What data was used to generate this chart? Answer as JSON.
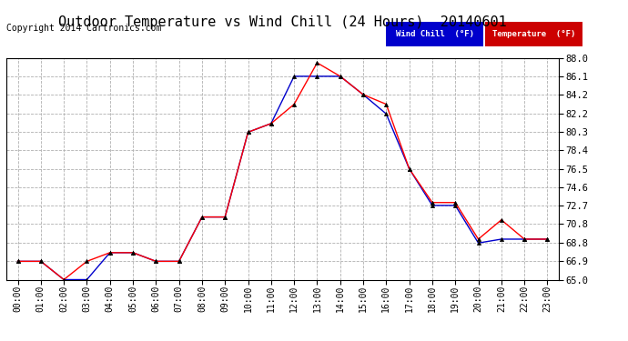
{
  "title": "Outdoor Temperature vs Wind Chill (24 Hours)  20140601",
  "copyright": "Copyright 2014 Cartronics.com",
  "ylim": [
    65.0,
    88.0
  ],
  "yticks": [
    65.0,
    66.9,
    68.8,
    70.8,
    72.7,
    74.6,
    76.5,
    78.4,
    80.3,
    82.2,
    84.2,
    86.1,
    88.0
  ],
  "hours": [
    "00:00",
    "01:00",
    "02:00",
    "03:00",
    "04:00",
    "05:00",
    "06:00",
    "07:00",
    "08:00",
    "09:00",
    "10:00",
    "11:00",
    "12:00",
    "13:00",
    "14:00",
    "15:00",
    "16:00",
    "17:00",
    "18:00",
    "19:00",
    "20:00",
    "21:00",
    "22:00",
    "23:00"
  ],
  "temperature": [
    66.9,
    66.9,
    65.0,
    66.9,
    67.8,
    67.8,
    66.9,
    66.9,
    71.5,
    71.5,
    80.3,
    81.2,
    83.2,
    87.5,
    86.1,
    84.2,
    83.2,
    76.5,
    73.0,
    73.0,
    69.2,
    71.2,
    69.2,
    69.2
  ],
  "wind_chill": [
    66.9,
    66.9,
    65.0,
    65.0,
    67.8,
    67.8,
    66.9,
    66.9,
    71.5,
    71.5,
    80.3,
    81.2,
    86.1,
    86.1,
    86.1,
    84.2,
    82.2,
    76.5,
    72.7,
    72.7,
    68.8,
    69.2,
    69.2,
    69.2
  ],
  "temp_color": "#ff0000",
  "wind_color": "#0000cc",
  "bg_color": "#ffffff",
  "grid_color": "#b0b0b0",
  "title_fontsize": 11,
  "copyright_fontsize": 7,
  "legend_wind_bg": "#0000cc",
  "legend_temp_bg": "#cc0000",
  "legend_text_color": "#ffffff"
}
